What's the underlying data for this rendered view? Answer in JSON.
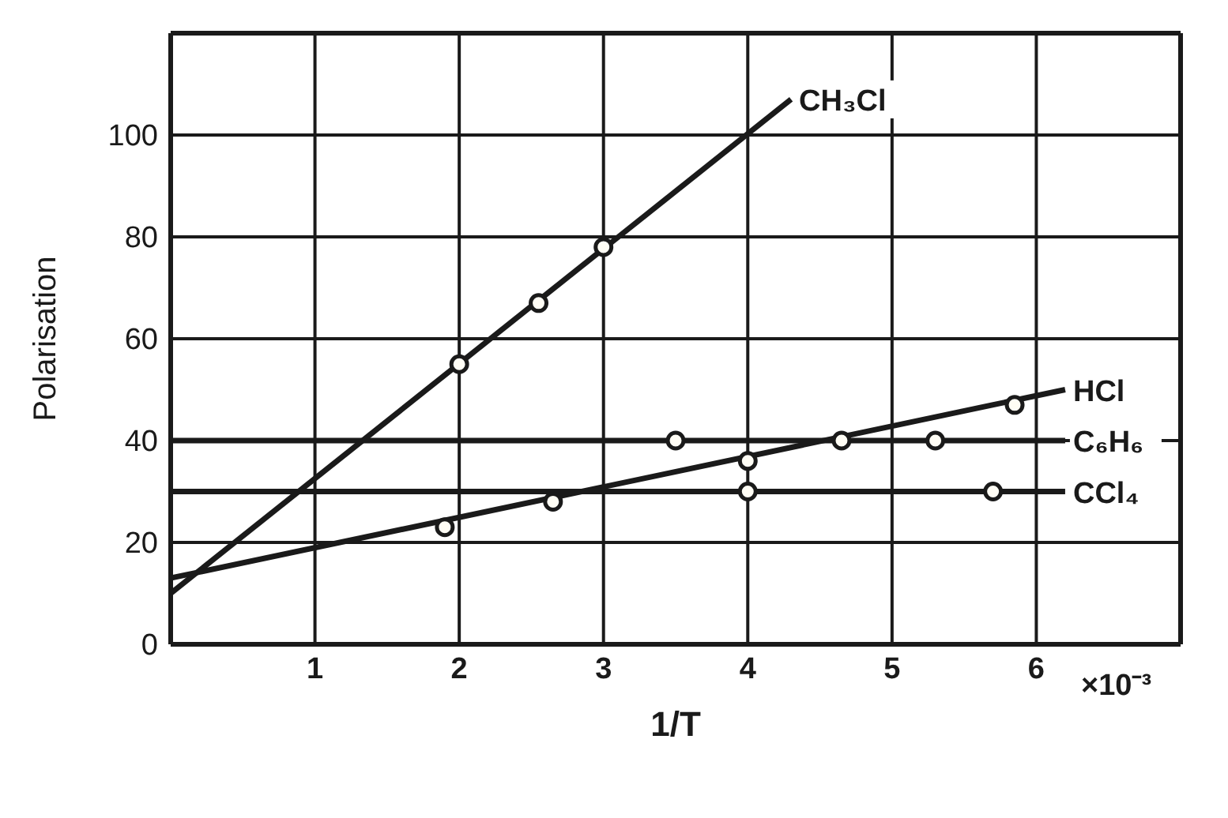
{
  "chart_data": {
    "type": "line",
    "xlabel": "1/T",
    "ylabel": "Polarisation",
    "xlim": [
      0,
      7
    ],
    "ylim": [
      0,
      120
    ],
    "xticks": [
      1,
      2,
      3,
      4,
      5,
      6
    ],
    "yticks": [
      0,
      20,
      40,
      60,
      80,
      100
    ],
    "annotations": [
      "×10⁻³"
    ],
    "grid": true,
    "legend": false,
    "line_style": "solid",
    "series": [
      {
        "name": "CH₃Cl",
        "color": "#1a1a1a",
        "marker": "none",
        "x": [
          0,
          4.3
        ],
        "values": [
          10,
          107
        ]
      },
      {
        "name": "HCl",
        "color": "#1a1a1a",
        "marker": "none",
        "x": [
          0,
          6.2
        ],
        "values": [
          13,
          50
        ]
      },
      {
        "name": "C₆H₆",
        "color": "#1a1a1a",
        "marker": "none",
        "x": [
          0,
          6.2
        ],
        "values": [
          40,
          40
        ]
      },
      {
        "name": "CCl₄",
        "color": "#1a1a1a",
        "marker": "none",
        "x": [
          0,
          6.2
        ],
        "values": [
          30,
          30
        ]
      },
      {
        "type": "scatter",
        "color": "#1a1a1a",
        "marker": "circle",
        "x": [
          2,
          2.55,
          3
        ],
        "values": [
          55,
          67,
          78
        ]
      },
      {
        "type": "scatter",
        "color": "#1a1a1a",
        "marker": "circle",
        "x": [
          1.9,
          2.65,
          4,
          5.85
        ],
        "values": [
          23,
          28,
          36,
          47
        ]
      },
      {
        "type": "scatter",
        "color": "#1a1a1a",
        "marker": "circle",
        "x": [
          3.5,
          4.65,
          5.3
        ],
        "values": [
          40,
          40,
          40
        ]
      },
      {
        "type": "scatter",
        "color": "#1a1a1a",
        "marker": "circle",
        "x": [
          4,
          5.7
        ],
        "values": [
          30,
          30
        ]
      }
    ]
  }
}
